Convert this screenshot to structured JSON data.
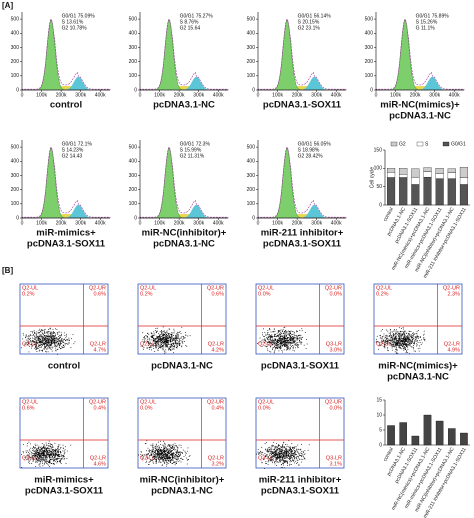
{
  "panel_a": {
    "label": "[A]",
    "histogram_axes": {
      "xlim": [
        0,
        450
      ],
      "ylim": [
        0,
        550
      ],
      "xticks": [
        0,
        {
          "value": 100,
          "label": "100k"
        },
        {
          "value": 200,
          "label": "200k"
        },
        {
          "value": 300,
          "label": "300k"
        },
        {
          "value": 400,
          "label": "400k"
        }
      ],
      "yticks": [
        0,
        100,
        200,
        300,
        400,
        500
      ]
    },
    "plots": [
      {
        "caption": [
          "control"
        ],
        "stats": [
          "G0/G1 75.09%",
          "S 13.61%",
          "G2 10.78%"
        ]
      },
      {
        "caption": [
          "pcDNA3.1-NC"
        ],
        "stats": [
          "G0/G1 75.27%",
          "S 8.76%",
          "G2 15.64"
        ]
      },
      {
        "caption": [
          "pcDNA3.1-SOX11"
        ],
        "stats": [
          "G0/G1 56.14%",
          "S 20.15%",
          "G2 23.1%"
        ]
      },
      {
        "caption": [
          "miR-NC(mimics)+",
          "pcDNA3.1-NC"
        ],
        "stats": [
          "G0/G1 75.89%",
          "S 15.26%",
          "G 11.1%"
        ]
      },
      {
        "caption": [
          "miR-mimics+",
          "pcDNA3.1-SOX11"
        ],
        "stats": [
          "G0/G1 72.1%",
          "S 14.23%",
          "G2 14.43"
        ]
      },
      {
        "caption": [
          "miR-NC(inhibitor)+",
          "pcDNA3.1-NC"
        ],
        "stats": [
          "G0/G1 72.3%",
          "S 15.99%",
          "G2 11.31%"
        ]
      },
      {
        "caption": [
          "miR-211 inhibitor+",
          "pcDNA3.1-SOX11"
        ],
        "stats": [
          "G0/G1 56.05%",
          "S 18.98%",
          "G2 28.42%"
        ]
      }
    ],
    "chart_data": {
      "type": "stacked_bar",
      "y_label": "Cell cycle",
      "categories": [
        "control",
        "pcDNA3.1-NC",
        "pcDNA3.1-SOX11",
        "miR-NC(mimics)+pcDNA3.1-NC",
        "miR-mimics+pcDNA3.1-SOX11",
        "miR-NC(inhibitor)+pcDNA3.1-NC",
        "miR-211 inhibitor+pcDNA3.1-SOX11"
      ],
      "series": [
        {
          "name": "G0/G1",
          "color": "#555555",
          "values": [
            75,
            75,
            56,
            76,
            72,
            72,
            56
          ]
        },
        {
          "name": "S",
          "color": "#ffffff",
          "values": [
            14,
            9,
            20,
            15,
            14,
            16,
            19
          ]
        },
        {
          "name": "G2",
          "color": "#cccccc",
          "values": [
            11,
            16,
            23,
            11,
            14,
            11,
            28
          ]
        }
      ],
      "ylim": [
        0,
        150
      ],
      "yticks": [
        0,
        50,
        100,
        150
      ]
    }
  },
  "panel_b": {
    "label": "[B]",
    "plots": [
      {
        "caption": [
          "control"
        ],
        "quadrants": {
          "ul": [
            "Q2-UL",
            "0.2%"
          ],
          "ur": [
            "Q2-UR",
            "0.6%"
          ],
          "ll": [
            "Q2-LL"
          ],
          "lr": [
            "Q2-LR",
            "4.7%"
          ]
        }
      },
      {
        "caption": [
          "pcDNA3.1-NC"
        ],
        "quadrants": {
          "ul": [
            "Q2-UL",
            "0.2%"
          ],
          "ur": [
            "Q2-UR",
            "0.6%"
          ],
          "ll": [
            "Q2-LL"
          ],
          "lr": [
            "Q2-LR",
            "4.2%"
          ]
        }
      },
      {
        "caption": [
          "pcDNA3.1-SOX11"
        ],
        "quadrants": {
          "ul": [
            "Q2-UL",
            "0.0%"
          ],
          "ur": [
            "Q2-UR",
            "0.0%"
          ],
          "ll": [
            "Q2-LL"
          ],
          "lr": [
            "Q3-LR",
            "3.0%"
          ]
        }
      },
      {
        "caption": [
          "miR-NC(mimics)+",
          "pcDNA3.1-NC"
        ],
        "quadrants": {
          "ul": [
            "Q2-UL",
            "0.2%"
          ],
          "ur": [
            "Q2-UR",
            "2.3%"
          ],
          "ll": [
            "Q2-LL"
          ],
          "lr": [
            "Q2-LR",
            "4.9%"
          ]
        }
      },
      {
        "caption": [
          "miR-mimics+",
          "pcDNA3.1-SOX11"
        ],
        "quadrants": {
          "ul": [
            "Q2-UL",
            "0.6%"
          ],
          "ur": [
            "Q2-UR",
            "0.4%"
          ],
          "ll": [
            "Q2-LL"
          ],
          "lr": [
            "Q2-LR",
            "4.6%"
          ]
        }
      },
      {
        "caption": [
          "miR-NC(inhibitor)+",
          "pcDNA3.1-NC"
        ],
        "quadrants": {
          "ul": [
            "Q2-UL",
            "0.0%"
          ],
          "ur": [
            "Q2-UR",
            "0.4%"
          ],
          "ll": [
            "Q2-LL"
          ],
          "lr": [
            "Q2-LR",
            "3.2%"
          ]
        }
      },
      {
        "caption": [
          "miR-211 inhibitor+",
          "pcDNA3.1-SOX11"
        ],
        "quadrants": {
          "ul": [
            "Q2-UL",
            "0.0%"
          ],
          "ur": [
            "Q2-UR",
            "0.0%"
          ],
          "ll": [
            "Q3-LL"
          ],
          "lr": [
            "Q3-LR",
            "3.1%"
          ]
        }
      }
    ],
    "chart_data": {
      "type": "bar",
      "categories": [
        "control",
        "pcDNA3.1-NC",
        "pcDNA3.1-SOX11",
        "miR-NC(mimics)+pcDNA3.1-NC",
        "miR-mimics+pcDNA3.1-SOX11",
        "miR-NC(inhibitor)+pcDNA3.1-NC",
        "miR-211 inhibitor+pcDNA3.1-SOX11"
      ],
      "values": [
        6.5,
        7.5,
        3,
        10,
        8,
        5.5,
        4
      ],
      "color": "#444444",
      "ylim": [
        0,
        15
      ],
      "yticks": [
        0,
        5,
        10,
        15
      ]
    }
  }
}
